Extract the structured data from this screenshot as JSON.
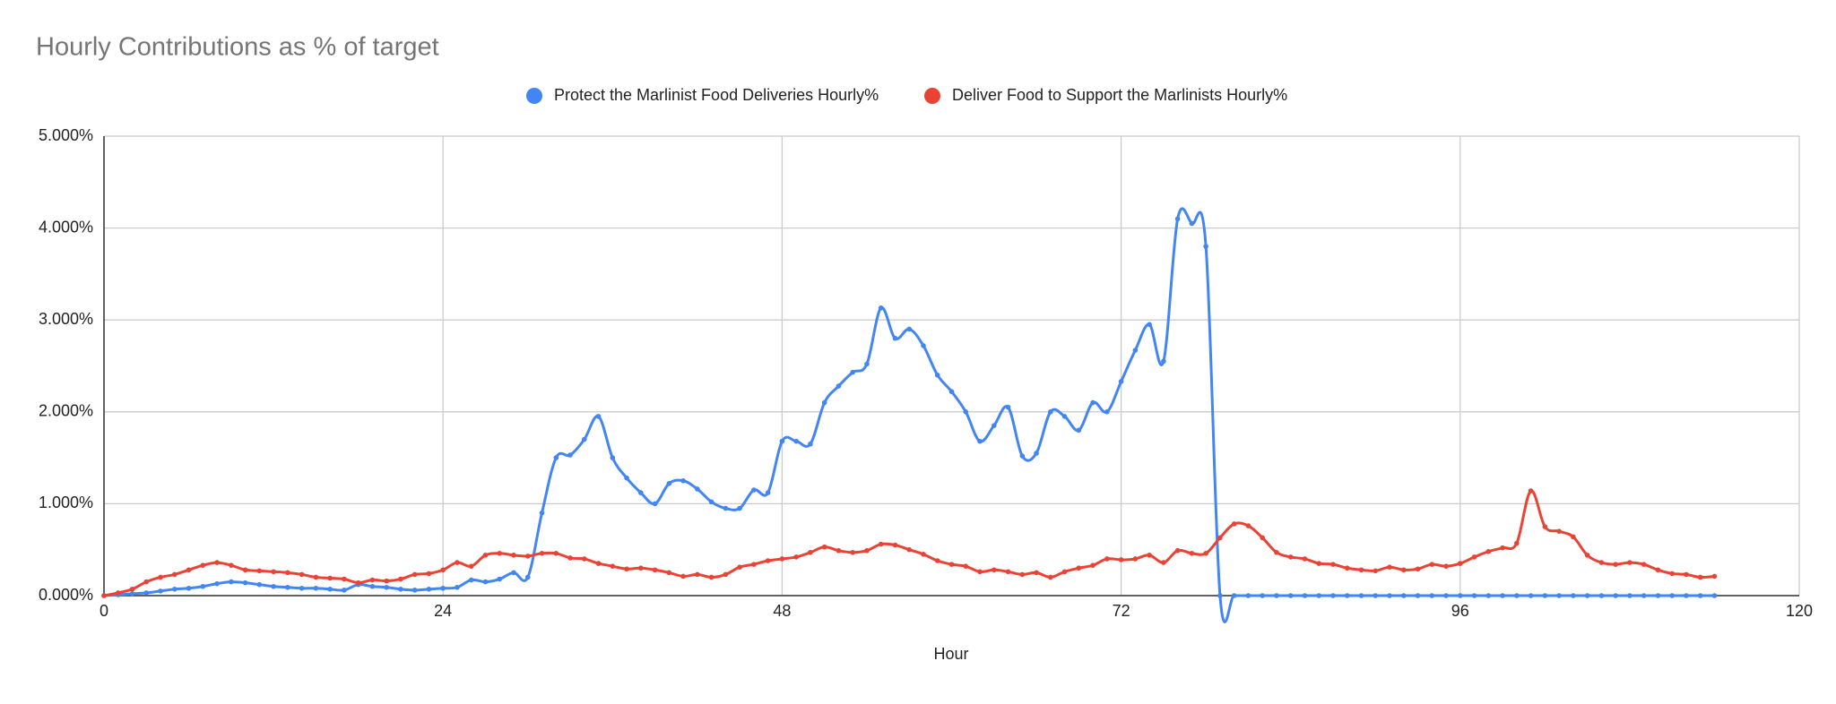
{
  "chart_data": {
    "type": "line",
    "title": "Hourly Contributions as % of target",
    "x_label": "Hour",
    "x": [
      0,
      1,
      2,
      3,
      4,
      5,
      6,
      7,
      8,
      9,
      10,
      11,
      12,
      13,
      14,
      15,
      16,
      17,
      18,
      19,
      20,
      21,
      22,
      23,
      24,
      25,
      26,
      27,
      28,
      29,
      30,
      31,
      32,
      33,
      34,
      35,
      36,
      37,
      38,
      39,
      40,
      41,
      42,
      43,
      44,
      45,
      46,
      47,
      48,
      49,
      50,
      51,
      52,
      53,
      54,
      55,
      56,
      57,
      58,
      59,
      60,
      61,
      62,
      63,
      64,
      65,
      66,
      67,
      68,
      69,
      70,
      71,
      72,
      73,
      74,
      75,
      76,
      77,
      78,
      79,
      80,
      81,
      82,
      83,
      84,
      85,
      86,
      87,
      88,
      89,
      90,
      91,
      92,
      93,
      94,
      95,
      96,
      97,
      98,
      99,
      100,
      101,
      102,
      103,
      104,
      105,
      106,
      107,
      108,
      109,
      110,
      111,
      112,
      113,
      114
    ],
    "series": [
      {
        "name": "Protect the Marlinist Food Deliveries Hourly%",
        "color": "#4285f4",
        "values": [
          0,
          0.01,
          0.02,
          0.03,
          0.05,
          0.07,
          0.08,
          0.1,
          0.13,
          0.15,
          0.14,
          0.12,
          0.1,
          0.09,
          0.08,
          0.08,
          0.07,
          0.06,
          0.12,
          0.1,
          0.09,
          0.07,
          0.06,
          0.07,
          0.08,
          0.09,
          0.17,
          0.15,
          0.18,
          0.25,
          0.2,
          0.9,
          1.5,
          1.53,
          1.7,
          1.95,
          1.5,
          1.28,
          1.12,
          1.0,
          1.22,
          1.25,
          1.16,
          1.02,
          0.95,
          0.95,
          1.15,
          1.12,
          1.68,
          1.68,
          1.65,
          2.1,
          2.28,
          2.43,
          2.52,
          3.13,
          2.8,
          2.9,
          2.72,
          2.4,
          2.22,
          2.0,
          1.68,
          1.85,
          2.05,
          1.52,
          1.55,
          2.0,
          1.95,
          1.8,
          2.1,
          2.0,
          2.33,
          2.67,
          2.95,
          2.55,
          4.1,
          4.05,
          3.8,
          0,
          0,
          0,
          0,
          0,
          0,
          0,
          0,
          0,
          0,
          0,
          0,
          0,
          0,
          0,
          0,
          0,
          0,
          0,
          0,
          0,
          0,
          0,
          0,
          0,
          0,
          0,
          0,
          0,
          0,
          0,
          0,
          0,
          0,
          0,
          0
        ]
      },
      {
        "name": "Deliver Food to Support the Marlinists Hourly%",
        "color": "#ea4335",
        "values": [
          0,
          0.03,
          0.07,
          0.15,
          0.2,
          0.23,
          0.28,
          0.33,
          0.36,
          0.33,
          0.28,
          0.27,
          0.26,
          0.25,
          0.23,
          0.2,
          0.19,
          0.18,
          0.14,
          0.17,
          0.16,
          0.18,
          0.23,
          0.24,
          0.28,
          0.36,
          0.32,
          0.44,
          0.46,
          0.44,
          0.43,
          0.46,
          0.46,
          0.41,
          0.4,
          0.35,
          0.32,
          0.29,
          0.3,
          0.28,
          0.25,
          0.21,
          0.23,
          0.2,
          0.23,
          0.31,
          0.34,
          0.38,
          0.4,
          0.42,
          0.47,
          0.53,
          0.49,
          0.47,
          0.49,
          0.56,
          0.55,
          0.5,
          0.45,
          0.38,
          0.34,
          0.32,
          0.26,
          0.28,
          0.26,
          0.23,
          0.25,
          0.2,
          0.26,
          0.3,
          0.33,
          0.4,
          0.39,
          0.4,
          0.44,
          0.36,
          0.49,
          0.46,
          0.46,
          0.63,
          0.78,
          0.76,
          0.63,
          0.47,
          0.42,
          0.4,
          0.35,
          0.34,
          0.3,
          0.28,
          0.27,
          0.31,
          0.28,
          0.29,
          0.34,
          0.32,
          0.35,
          0.42,
          0.48,
          0.52,
          0.57,
          1.14,
          0.75,
          0.7,
          0.64,
          0.44,
          0.36,
          0.34,
          0.36,
          0.34,
          0.28,
          0.24,
          0.23,
          0.2,
          0.21
        ]
      }
    ],
    "xlim": [
      0,
      120
    ],
    "xticks": [
      0,
      24,
      48,
      72,
      96,
      120
    ],
    "ylim": [
      0,
      5
    ],
    "yticks": [
      {
        "value": 0,
        "label": "0.000%"
      },
      {
        "value": 1,
        "label": "1.000%"
      },
      {
        "value": 2,
        "label": "2.000%"
      },
      {
        "value": 3,
        "label": "3.000%"
      },
      {
        "value": 4,
        "label": "4.000%"
      },
      {
        "value": 5,
        "label": "5.000%"
      }
    ],
    "grid": true,
    "legend": "top"
  }
}
